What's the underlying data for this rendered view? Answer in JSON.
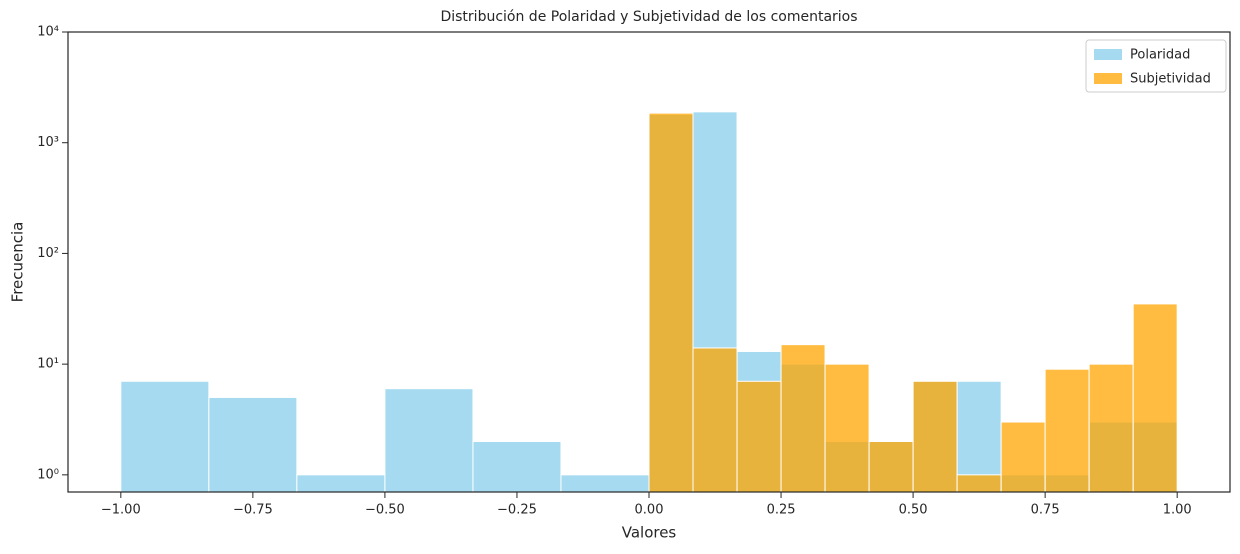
{
  "chart_data": {
    "type": "histogram",
    "title": "Distribución de Polaridad y Subjetividad de los comentarios",
    "x_label": "Valores",
    "y_label": "Frecuencia",
    "log_y": true,
    "legend": "upper right",
    "xlim": [
      -1.1,
      1.1
    ],
    "xticks": [
      {
        "value": -1,
        "label": "−1.00"
      },
      {
        "value": -0.75,
        "label": "−0.75"
      },
      {
        "value": -0.5,
        "label": "−0.50"
      },
      {
        "value": -0.25,
        "label": "−0.25"
      },
      {
        "value": 0,
        "label": "0.00"
      },
      {
        "value": 0.25,
        "label": "0.25"
      },
      {
        "value": 0.5,
        "label": "0.50"
      },
      {
        "value": 0.75,
        "label": "0.75"
      },
      {
        "value": 1,
        "label": "1.00"
      }
    ],
    "ylim": [
      0.7,
      10000
    ],
    "yticks": [
      {
        "value": 1,
        "label": "10⁰"
      },
      {
        "value": 10,
        "label": "10¹"
      },
      {
        "value": 100,
        "label": "10²"
      },
      {
        "value": 1000,
        "label": "10³"
      },
      {
        "value": 10000,
        "label": "10⁴"
      }
    ],
    "series": [
      {
        "name": "Polaridad",
        "color": "#87ceeb",
        "bins": [
          -1,
          -0.8333,
          -0.6667,
          -0.5,
          -0.3333,
          -0.1667,
          0,
          0.0833,
          0.1667,
          0.25,
          0.3333,
          0.4167,
          0.5,
          0.5833,
          0.6667,
          0.75,
          0.8333,
          0.9167,
          1
        ],
        "values": [
          7,
          5,
          1,
          6,
          2,
          1,
          1800,
          1900,
          13,
          10,
          2,
          2,
          7,
          7,
          1,
          1,
          3,
          3
        ]
      },
      {
        "name": "Subjetividad",
        "color": "#ffa500",
        "bins": [
          0,
          0.0833,
          0.1667,
          0.25,
          0.3333,
          0.4167,
          0.5,
          0.5833,
          0.6667,
          0.75,
          0.8333,
          0.9167,
          1
        ],
        "values": [
          1850,
          14,
          7,
          15,
          10,
          2,
          7,
          1,
          3,
          9,
          10,
          35
        ]
      }
    ]
  }
}
